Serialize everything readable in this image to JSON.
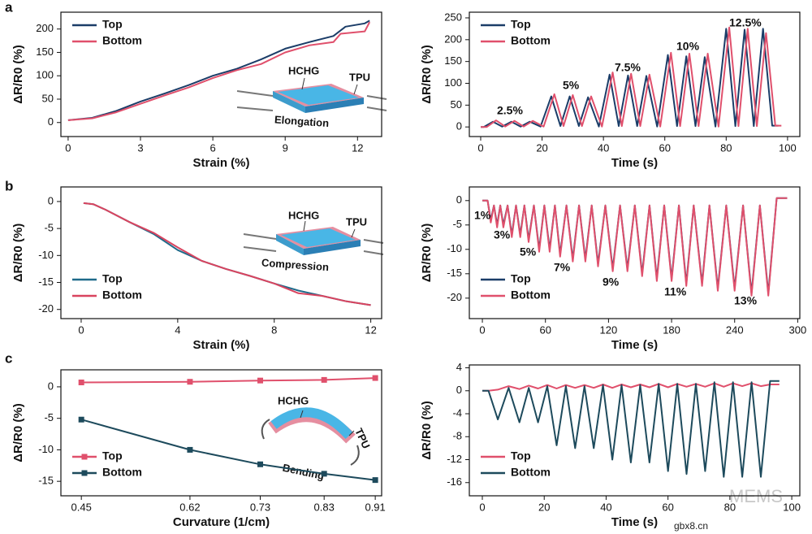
{
  "panel_labels": [
    "a",
    "b",
    "c"
  ],
  "watermark": [
    "MEMS",
    "gbx8.cn"
  ],
  "chart_data": [
    {
      "type": "line",
      "xlabel": "Strain (%)",
      "ylabel": "ΔR/R0 (%)",
      "xlim": [
        -0.3,
        13
      ],
      "ylim": [
        -30,
        236
      ],
      "xticks": [
        0,
        3,
        6,
        9,
        12
      ],
      "yticks": [
        0,
        50,
        100,
        150,
        200
      ],
      "legend": "upper left",
      "annotations": [
        "HCHG",
        "TPU",
        "Elongation"
      ],
      "series": [
        {
          "name": "Top",
          "color": "#1b3d68",
          "x": [
            0,
            1,
            2,
            3,
            4,
            5,
            6,
            7,
            8,
            9,
            10,
            11,
            11.5,
            12.3,
            12.5
          ],
          "values": [
            5,
            10,
            25,
            45,
            62,
            80,
            100,
            115,
            135,
            158,
            172,
            185,
            205,
            212,
            218
          ]
        },
        {
          "name": "Bottom",
          "color": "#e0506c",
          "x": [
            0,
            1,
            2,
            3,
            4,
            5,
            6,
            7,
            8,
            9,
            10,
            11,
            11.3,
            12.3,
            12.5
          ],
          "values": [
            5,
            9,
            22,
            40,
            58,
            75,
            95,
            112,
            125,
            150,
            165,
            172,
            190,
            195,
            215
          ]
        }
      ]
    },
    {
      "type": "line",
      "xlabel": "Time (s)",
      "ylabel": "ΔR/R0 (%)",
      "xlim": [
        -3.7,
        104
      ],
      "ylim": [
        -22,
        263
      ],
      "xticks": [
        0,
        20,
        40,
        60,
        80,
        100
      ],
      "yticks": [
        0,
        50,
        100,
        150,
        200,
        250
      ],
      "legend": "upper left",
      "annotations": [
        "2.5%",
        "5%",
        "7.5%",
        "10%",
        "12.5%"
      ],
      "series": [
        {
          "name": "Top",
          "color": "#1b3d68",
          "x": [
            0,
            1,
            4,
            7,
            10,
            13,
            16,
            19.5,
            23,
            26,
            29,
            32,
            35,
            38.5,
            42,
            45,
            48,
            51,
            54,
            57.5,
            61,
            64,
            67,
            70,
            73,
            76.5,
            80,
            83,
            86,
            89,
            92,
            95,
            97
          ],
          "values": [
            0,
            0,
            12,
            1,
            12,
            1,
            12,
            1,
            70,
            2,
            70,
            2,
            68,
            1,
            120,
            2,
            118,
            2,
            117,
            1,
            165,
            2,
            162,
            2,
            160,
            1,
            225,
            2,
            223,
            2,
            225,
            3,
            3
          ]
        },
        {
          "name": "Bottom",
          "color": "#e0506c",
          "x": [
            0,
            2,
            5,
            8,
            11,
            14,
            17,
            20.5,
            24,
            27,
            30,
            33,
            36,
            39.5,
            43,
            46,
            49,
            52,
            55,
            58.5,
            62,
            65,
            68,
            71,
            74,
            77.5,
            81,
            84,
            87,
            90,
            93,
            96,
            98
          ],
          "values": [
            0,
            0,
            15,
            1,
            14,
            1,
            14,
            1,
            75,
            2,
            73,
            2,
            70,
            1,
            125,
            2,
            122,
            2,
            120,
            1,
            170,
            2,
            168,
            2,
            168,
            1,
            228,
            2,
            225,
            2,
            215,
            3,
            3
          ]
        }
      ]
    },
    {
      "type": "line",
      "xlabel": "Strain (%)",
      "ylabel": "ΔR/R0 (%)",
      "xlim": [
        -0.84,
        12.45
      ],
      "ylim": [
        -21.7,
        2.7
      ],
      "xticks": [
        0,
        4,
        8,
        12
      ],
      "yticks": [
        0,
        -5,
        -10,
        -15,
        -20
      ],
      "legend": "lower left",
      "annotations": [
        "HCHG",
        "TPU",
        "Compression"
      ],
      "x": [
        0.1,
        0.5,
        1,
        2,
        3,
        4,
        5,
        6,
        7,
        8,
        9,
        10,
        11,
        12
      ],
      "series": [
        {
          "name": "Top",
          "color": "#1f6a8a",
          "values": [
            -0.3,
            -0.5,
            -1.5,
            -3.8,
            -6,
            -9,
            -11,
            -12.5,
            -13.8,
            -15.2,
            -16.5,
            -17.5,
            -18.5,
            -19.2
          ]
        },
        {
          "name": "Bottom",
          "color": "#d9445f",
          "values": [
            -0.3,
            -0.5,
            -1.5,
            -3.8,
            -5.8,
            -8.5,
            -11,
            -12.5,
            -13.8,
            -15.2,
            -17,
            -17.5,
            -18.5,
            -19.2
          ]
        }
      ]
    },
    {
      "type": "line",
      "xlabel": "Time (s)",
      "ylabel": "ΔR/R0 (%)",
      "xlim": [
        -12.4,
        302
      ],
      "ylim": [
        -24.2,
        2.8
      ],
      "xticks": [
        0,
        60,
        120,
        180,
        240,
        300
      ],
      "yticks": [
        0,
        -5,
        -10,
        -15,
        -20
      ],
      "legend": "lower left",
      "annotations": [
        "1%",
        "3%",
        "5%",
        "7%",
        "9%",
        "11%",
        "13%"
      ],
      "x": [
        0,
        5,
        8,
        11,
        14,
        17,
        20,
        24,
        28,
        32,
        36,
        40,
        44,
        49,
        54,
        59,
        64,
        69,
        74,
        80,
        86,
        92,
        98,
        104,
        110,
        117,
        124,
        131,
        138,
        145,
        152,
        159,
        166,
        173,
        180,
        187,
        194,
        201,
        209,
        216,
        224,
        232,
        240,
        248,
        256,
        264,
        272,
        280,
        290
      ],
      "series": [
        {
          "name": "Top",
          "color": "#1b3d68",
          "values": [
            0,
            0,
            -4,
            -1,
            -5,
            -1,
            -5,
            -1,
            -7,
            -1,
            -7,
            -1,
            -8,
            -1,
            -10,
            -1,
            -10,
            -1,
            -11,
            -1,
            -12,
            -1,
            -12,
            -1,
            -13,
            -1,
            -14,
            -1,
            -14,
            -1,
            -15,
            -1,
            -16,
            -1,
            -16,
            -1,
            -17,
            -1,
            -17,
            -1,
            -18,
            -1,
            -18,
            -1,
            -19,
            -1,
            -19,
            0.5,
            0.5
          ]
        },
        {
          "name": "Bottom",
          "color": "#e0506c",
          "values": [
            0,
            0,
            -4.5,
            -1,
            -5.5,
            -1,
            -5.5,
            -1,
            -7.5,
            -1,
            -7.5,
            -1,
            -8.5,
            -1,
            -10.5,
            -1,
            -10.5,
            -1,
            -11.5,
            -1,
            -12.5,
            -1,
            -12.5,
            -1,
            -13.5,
            -1,
            -14.5,
            -1,
            -14.5,
            -1,
            -15.5,
            -1,
            -16.5,
            -1,
            -16.5,
            -1,
            -17.5,
            -1,
            -17.5,
            -1,
            -18.5,
            -1,
            -18.5,
            -1,
            -19.5,
            -1,
            -19.5,
            0.5,
            0.5
          ]
        }
      ]
    },
    {
      "type": "line",
      "xlabel": "Curvature (1/cm)",
      "ylabel": "ΔR/R0 (%)",
      "marker": "square",
      "xlim": [
        0.418,
        0.92
      ],
      "ylim": [
        -17.3,
        2.7
      ],
      "xticks": [
        0.45,
        0.62,
        0.73,
        0.83,
        0.91
      ],
      "yticks": [
        0,
        -5,
        -10,
        -15
      ],
      "legend": "lower left",
      "annotations": [
        "HCHG",
        "TPU",
        "Bending"
      ],
      "x": [
        0.45,
        0.62,
        0.73,
        0.83,
        0.91
      ],
      "series": [
        {
          "name": "Top",
          "color": "#e0506c",
          "values": [
            0.7,
            0.8,
            1.0,
            1.1,
            1.4
          ]
        },
        {
          "name": "Bottom",
          "color": "#1d4a5c",
          "values": [
            -5.2,
            -10,
            -12.3,
            -13.8,
            -14.8
          ]
        }
      ]
    },
    {
      "type": "line",
      "xlabel": "Time (s)",
      "ylabel": "ΔR/R0 (%)",
      "xlim": [
        -4.2,
        102.6
      ],
      "ylim": [
        -18.3,
        4.5
      ],
      "xticks": [
        0,
        20,
        40,
        60,
        80,
        100
      ],
      "yticks": [
        4,
        0,
        -4,
        -8,
        -12,
        -16
      ],
      "legend": "lower left",
      "x": [
        0,
        2,
        5,
        8.5,
        12,
        15,
        18,
        21,
        24,
        27,
        30,
        33,
        36,
        39,
        42,
        45,
        48,
        51,
        54,
        57,
        60,
        63,
        66,
        69,
        72,
        75,
        78,
        81,
        84,
        87,
        90,
        93,
        96
      ],
      "series": [
        {
          "name": "Top",
          "color": "#e0506c",
          "values": [
            0,
            0,
            0.2,
            0.8,
            0.3,
            0.9,
            0.4,
            1,
            0.4,
            1,
            0.5,
            1,
            0.5,
            1.1,
            0.5,
            1.1,
            0.6,
            1.1,
            0.6,
            1.2,
            0.6,
            1.2,
            0.7,
            1.2,
            0.7,
            1.3,
            0.7,
            1.3,
            0.8,
            1.3,
            0.8,
            1.1,
            1.1
          ]
        },
        {
          "name": "Bottom",
          "color": "#1d4a5c",
          "values": [
            0,
            0,
            -5,
            0.5,
            -5.5,
            0.5,
            -5.5,
            0.8,
            -9.5,
            0.8,
            -10,
            0.8,
            -10,
            1,
            -12,
            1,
            -12.5,
            1,
            -12.5,
            1.2,
            -14,
            1.2,
            -14.5,
            1.2,
            -14,
            1.5,
            -15,
            1.5,
            -15,
            1.5,
            -15,
            1.7,
            1.7
          ]
        }
      ]
    }
  ]
}
